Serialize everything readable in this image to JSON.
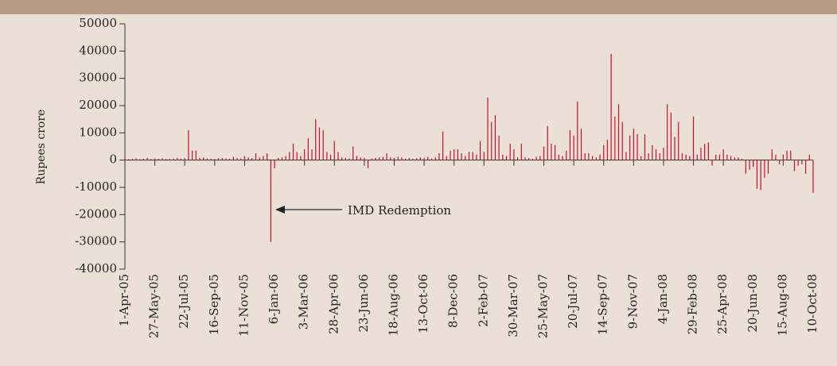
{
  "chart_data": {
    "type": "bar",
    "y_label": "Rupees crore",
    "annotation": "IMD Redemption",
    "color": "#c8102e",
    "grid": false,
    "ylim": [
      -40000,
      50000
    ],
    "yticks": [
      -40000,
      -30000,
      -20000,
      -10000,
      0,
      10000,
      20000,
      30000,
      40000,
      50000
    ],
    "categories": [
      "1-Apr-05",
      null,
      null,
      null,
      null,
      null,
      null,
      null,
      "27-May-05",
      null,
      null,
      null,
      null,
      null,
      null,
      null,
      "22-Jul-05",
      null,
      null,
      null,
      null,
      null,
      null,
      null,
      "16-Sep-05",
      null,
      null,
      null,
      null,
      null,
      null,
      null,
      "11-Nov-05",
      null,
      null,
      null,
      null,
      null,
      null,
      null,
      "6-Jan-06",
      null,
      null,
      null,
      null,
      null,
      null,
      null,
      "3-Mar-06",
      null,
      null,
      null,
      null,
      null,
      null,
      null,
      "28-Apr-06",
      null,
      null,
      null,
      null,
      null,
      null,
      null,
      "23-Jun-06",
      null,
      null,
      null,
      null,
      null,
      null,
      null,
      "18-Aug-06",
      null,
      null,
      null,
      null,
      null,
      null,
      null,
      "13-Oct-06",
      null,
      null,
      null,
      null,
      null,
      null,
      null,
      "8-Dec-06",
      null,
      null,
      null,
      null,
      null,
      null,
      null,
      "2-Feb-07",
      null,
      null,
      null,
      null,
      null,
      null,
      null,
      "30-Mar-07",
      null,
      null,
      null,
      null,
      null,
      null,
      null,
      "25-May-07",
      null,
      null,
      null,
      null,
      null,
      null,
      null,
      "20-Jul-07",
      null,
      null,
      null,
      null,
      null,
      null,
      null,
      "14-Sep-07",
      null,
      null,
      null,
      null,
      null,
      null,
      null,
      "9-Nov-07",
      null,
      null,
      null,
      null,
      null,
      null,
      null,
      "4-Jan-08",
      null,
      null,
      null,
      null,
      null,
      null,
      null,
      "29-Feb-08",
      null,
      null,
      null,
      null,
      null,
      null,
      null,
      "25-Apr-08",
      null,
      null,
      null,
      null,
      null,
      null,
      null,
      "20-Jun-08",
      null,
      null,
      null,
      null,
      null,
      null,
      null,
      "15-Aug-08",
      null,
      null,
      null,
      null,
      null,
      null,
      null,
      "10-Oct-08"
    ],
    "values": [
      500,
      300,
      400,
      600,
      300,
      500,
      800,
      400,
      600,
      500,
      700,
      400,
      500,
      600,
      800,
      500,
      700,
      11000,
      3500,
      3500,
      800,
      1000,
      600,
      500,
      400,
      700,
      800,
      600,
      500,
      1200,
      800,
      600,
      1500,
      1000,
      800,
      2500,
      1000,
      1500,
      2500,
      -30000,
      -3000,
      800,
      1000,
      1500,
      3000,
      6000,
      3000,
      1500,
      4000,
      8000,
      4000,
      15000,
      12000,
      11000,
      3000,
      2000,
      7000,
      3000,
      1000,
      800,
      600,
      5000,
      1500,
      1000,
      800,
      -3000,
      600,
      800,
      1000,
      1200,
      2500,
      1000,
      800,
      1200,
      1000,
      600,
      800,
      500,
      700,
      1000,
      800,
      1200,
      600,
      1000,
      2500,
      10500,
      1500,
      3500,
      4000,
      4000,
      2500,
      1500,
      3000,
      3000,
      2000,
      7000,
      3000,
      23000,
      14000,
      16500,
      9000,
      2000,
      1500,
      6000,
      4000,
      1000,
      6000,
      1000,
      800,
      500,
      1200,
      1500,
      5000,
      12500,
      6000,
      5500,
      2000,
      1500,
      3500,
      11000,
      9000,
      21500,
      11500,
      2500,
      2500,
      1500,
      1000,
      2000,
      5500,
      7500,
      39000,
      16000,
      20500,
      14000,
      3000,
      9000,
      11500,
      9500,
      1500,
      9500,
      2500,
      5500,
      4000,
      2500,
      4500,
      20500,
      17500,
      8500,
      14000,
      2500,
      2000,
      1500,
      16000,
      2000,
      4500,
      6000,
      6500,
      -2000,
      2000,
      2000,
      4000,
      2000,
      1500,
      1000,
      1000,
      500,
      -5000,
      -3500,
      -2500,
      -10500,
      -11000,
      -6500,
      -5000,
      4000,
      2000,
      -1500,
      2000,
      3500,
      3500,
      -4000,
      -2000,
      -1500,
      -5000,
      2000,
      -12000
    ]
  }
}
